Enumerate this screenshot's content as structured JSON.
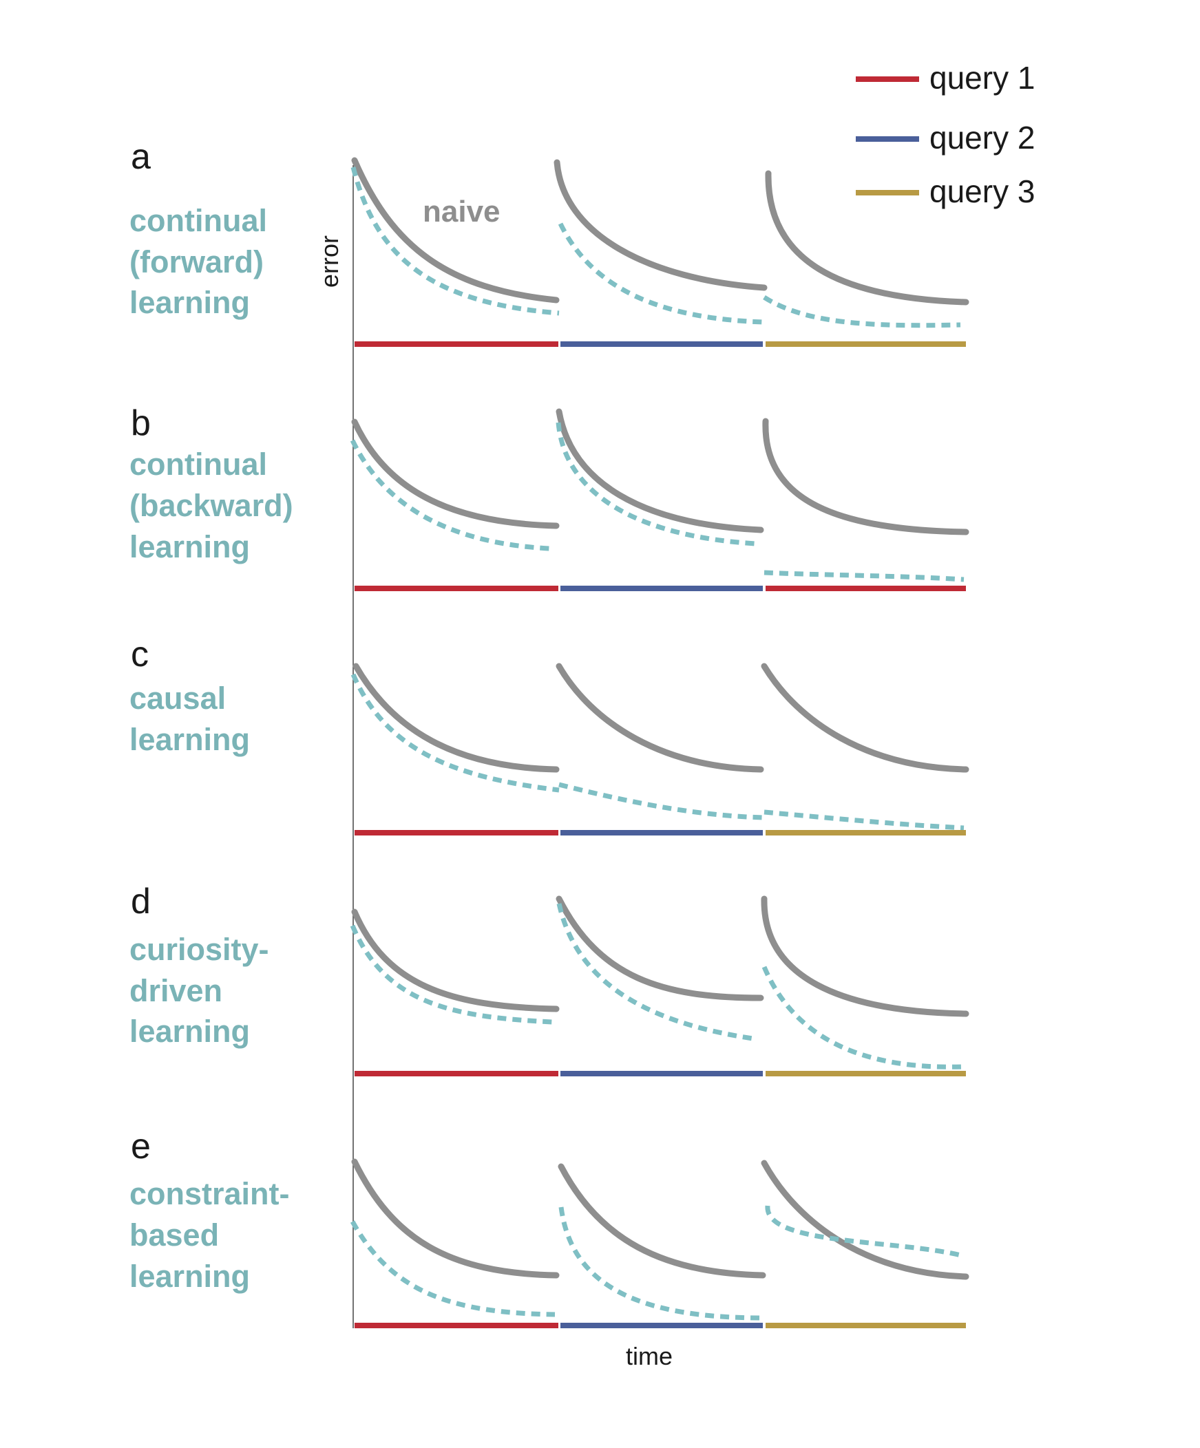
{
  "legend": [
    {
      "label": "query 1",
      "color": "#bf2a35"
    },
    {
      "label": "query 2",
      "color": "#4a5f9a"
    },
    {
      "label": "query 3",
      "color": "#b89a44"
    }
  ],
  "axes": {
    "ylabel": "error",
    "xlabel": "time"
  },
  "naive_label": "naive",
  "colors": {
    "naive": "#8e8e8e",
    "learner": "#7fbfc4",
    "title": "#7ab3b6"
  },
  "panels": [
    {
      "letter": "a",
      "title_lines": [
        "continual",
        "(forward)",
        "learning"
      ],
      "queries": [
        1,
        2,
        3
      ]
    },
    {
      "letter": "b",
      "title_lines": [
        "continual",
        "(backward)",
        "learning"
      ],
      "queries": [
        1,
        2,
        1
      ]
    },
    {
      "letter": "c",
      "title_lines": [
        "causal",
        "learning"
      ],
      "queries": [
        1,
        2,
        3
      ]
    },
    {
      "letter": "d",
      "title_lines": [
        "curiosity-",
        "driven",
        "learning"
      ],
      "queries": [
        1,
        2,
        3
      ]
    },
    {
      "letter": "e",
      "title_lines": [
        "constraint-",
        "based",
        "learning"
      ],
      "queries": [
        1,
        2,
        3
      ]
    }
  ]
}
